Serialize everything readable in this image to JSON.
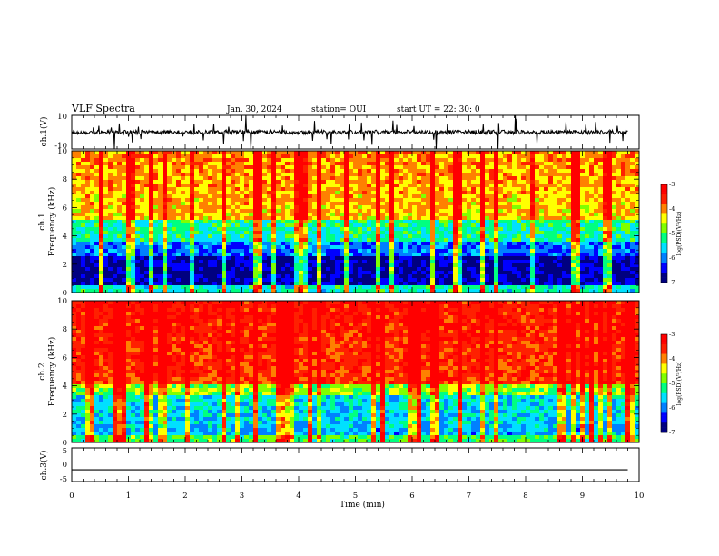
{
  "header": {
    "title": "VLF Spectra",
    "date": "Jan. 30, 2024",
    "station": "station= OUI",
    "start": "start  UT  =   22: 30: 0"
  },
  "colors": {
    "axis": "#000000",
    "trace": "#000000",
    "colormap": [
      "#000080",
      "#0000ff",
      "#0080ff",
      "#00e0ff",
      "#00ff80",
      "#80ff00",
      "#ffff00",
      "#ff8000",
      "#ff2000",
      "#ff0000"
    ]
  },
  "chart_data": [
    {
      "type": "line",
      "ylabel": "ch.1(V)",
      "ylim": [
        -10,
        10
      ],
      "yticklabels": [
        "10",
        "-10"
      ],
      "xlim": [
        0,
        10
      ],
      "description_values": {
        "baseline_v": 0,
        "burst_level_v": 10
      }
    },
    {
      "type": "heatmap",
      "ylabel": "ch.1\nFrequency (kHz)",
      "ylabel_lines": [
        "ch.1",
        "Frequency (kHz)"
      ],
      "ylim": [
        0,
        10
      ],
      "yticklabels": [
        "10",
        "8",
        "6",
        "4",
        "2",
        "0"
      ],
      "xlim": [
        0,
        10
      ],
      "colorbar": {
        "label": "log(PSD)(V²/Hz)",
        "ticks": [
          "-3",
          "-4",
          "-5",
          "-6",
          "-7"
        ],
        "range": [
          -7,
          -3
        ]
      }
    },
    {
      "type": "heatmap",
      "ylabel": "ch.2\nFrequency (kHz)",
      "ylabel_lines": [
        "ch.2",
        "Frequency (kHz)"
      ],
      "ylim": [
        0,
        10
      ],
      "yticklabels": [
        "10",
        "8",
        "6",
        "4",
        "2",
        "0"
      ],
      "xlim": [
        0,
        10
      ],
      "colorbar": {
        "label": "log(PSD)(V²/Hz)",
        "ticks": [
          "-3",
          "-4",
          "-5",
          "-6",
          "-7"
        ],
        "range": [
          -7,
          -3
        ]
      }
    },
    {
      "type": "line",
      "ylabel": "ch.3(V)",
      "ylim": [
        -5,
        5
      ],
      "yticklabels": [
        "5",
        "0",
        "-5"
      ],
      "xlim": [
        0,
        10
      ],
      "x": [
        0,
        9.8
      ],
      "y": [
        -1.5,
        -1.5
      ]
    }
  ],
  "xaxis": {
    "label": "Time (min)",
    "ticks": [
      "0",
      "1",
      "2",
      "3",
      "4",
      "5",
      "6",
      "7",
      "8",
      "9",
      "10"
    ]
  }
}
